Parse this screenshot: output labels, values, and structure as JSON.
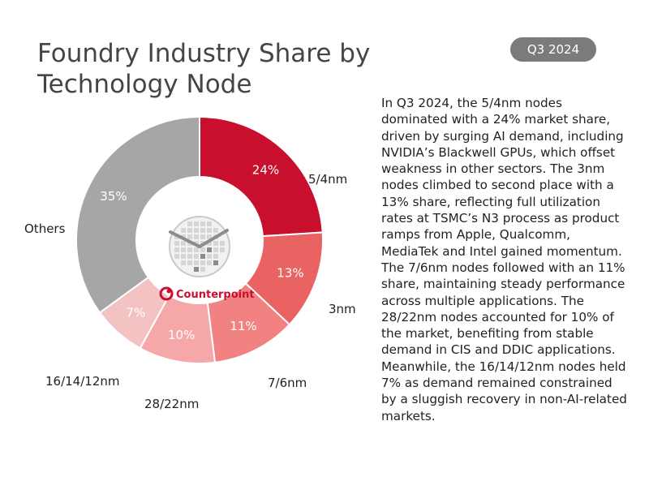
{
  "header": {
    "title": "Foundry Industry Share by Technology Node",
    "badge": "Q3 2024"
  },
  "description": "In Q3 2024, the 5/4nm nodes dominated with a 24% market share, driven by surging AI demand, including NVIDIA’s Blackwell GPUs, which offset weakness in other sectors. The 3nm nodes climbed to second place with a 13% share, reflecting full utilization rates at TSMC’s N3 process as product ramps from Apple, Qualcomm, MediaTek and Intel gained momentum. The 7/6nm nodes followed with an 11% share, maintaining steady performance across multiple applications. The 28/22nm nodes accounted for 10% of the market, benefiting from stable demand in CIS and DDIC applications. Meanwhile, the 16/14/12nm nodes held 7% as demand remained constrained by a sluggish recovery in non-AI-related markets.",
  "logo": {
    "name": "Counterpoint",
    "icon": "wafer-clock-icon"
  },
  "chart_data": {
    "type": "pie",
    "variant": "donut",
    "title": "Foundry Industry Share by Technology Node",
    "categories": [
      "5/4nm",
      "3nm",
      "7/6nm",
      "28/22nm",
      "16/14/12nm",
      "Others"
    ],
    "values": [
      24,
      13,
      11,
      10,
      7,
      35
    ],
    "value_labels": [
      "24%",
      "13%",
      "11%",
      "10%",
      "7%",
      "35%"
    ],
    "unit": "%",
    "colors": [
      "#c8102e",
      "#ea6363",
      "#f28282",
      "#f6a8a8",
      "#f3c3c3",
      "#a6a6a6"
    ],
    "start_angle_deg": 0,
    "direction": "clockwise"
  }
}
